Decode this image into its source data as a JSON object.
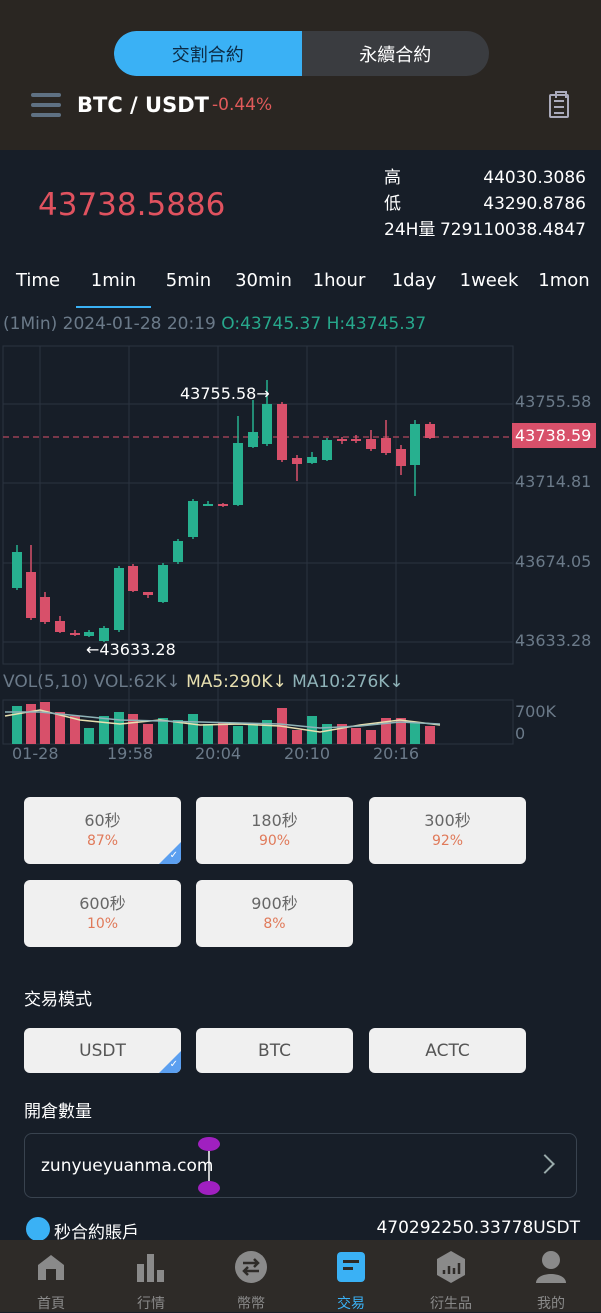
{
  "tabs": {
    "contract_time": "交割合約",
    "perpetual": "永續合約"
  },
  "pair": {
    "symbol": "BTC / USDT",
    "change": "-0.44%"
  },
  "ticker": {
    "price": "43738.5886",
    "high_label": "高",
    "high": "44030.3086",
    "low_label": "低",
    "low": "43290.8786",
    "vol_label": "24H量",
    "vol": "729110038.4847"
  },
  "timeframes": [
    "Time",
    "1min",
    "5min",
    "30min",
    "1hour",
    "1day",
    "1week",
    "1mon"
  ],
  "chart_info": {
    "period": "(1Min)",
    "datetime": "2024-01-28",
    "time": "20:19",
    "open": "O:43745.37",
    "high": "H:43745.37"
  },
  "chart_data": {
    "type": "candlestick",
    "y_ticks": [
      "43755.58",
      "43714.81",
      "43674.05",
      "43633.28"
    ],
    "current_price_label": "43738.59",
    "max_annotation": "43755.58→",
    "min_annotation": "←43633.28",
    "x_ticks": [
      "01-28",
      "19:58",
      "20:04",
      "20:10",
      "20:16"
    ],
    "volume_legend": {
      "vol": "VOL(5,10)",
      "vol_val": "VOL:62K↓",
      "ma5": "MA5:290K↓",
      "ma10": "MA10:276K↓"
    },
    "volume_ticks": [
      "700K",
      "0"
    ],
    "colors": {
      "up": "#27b08f",
      "down": "#d8506a",
      "ma5": "#e8e0b0",
      "ma10": "#8fb3b8"
    }
  },
  "durations": [
    {
      "time": "60秒",
      "pct": "87%"
    },
    {
      "time": "180秒",
      "pct": "90%"
    },
    {
      "time": "300秒",
      "pct": "92%"
    },
    {
      "time": "600秒",
      "pct": "10%"
    },
    {
      "time": "900秒",
      "pct": "8%"
    }
  ],
  "trade_mode": {
    "label": "交易模式",
    "options": [
      "USDT",
      "BTC",
      "ACTC"
    ]
  },
  "quantity": {
    "label": "開倉數量",
    "value": "zunyueyuanma.com"
  },
  "account": {
    "label": "秒合約賬戶",
    "value": "470292250.33778USDT"
  },
  "nav": [
    "首頁",
    "行情",
    "幣幣",
    "交易",
    "衍生品",
    "我的"
  ]
}
